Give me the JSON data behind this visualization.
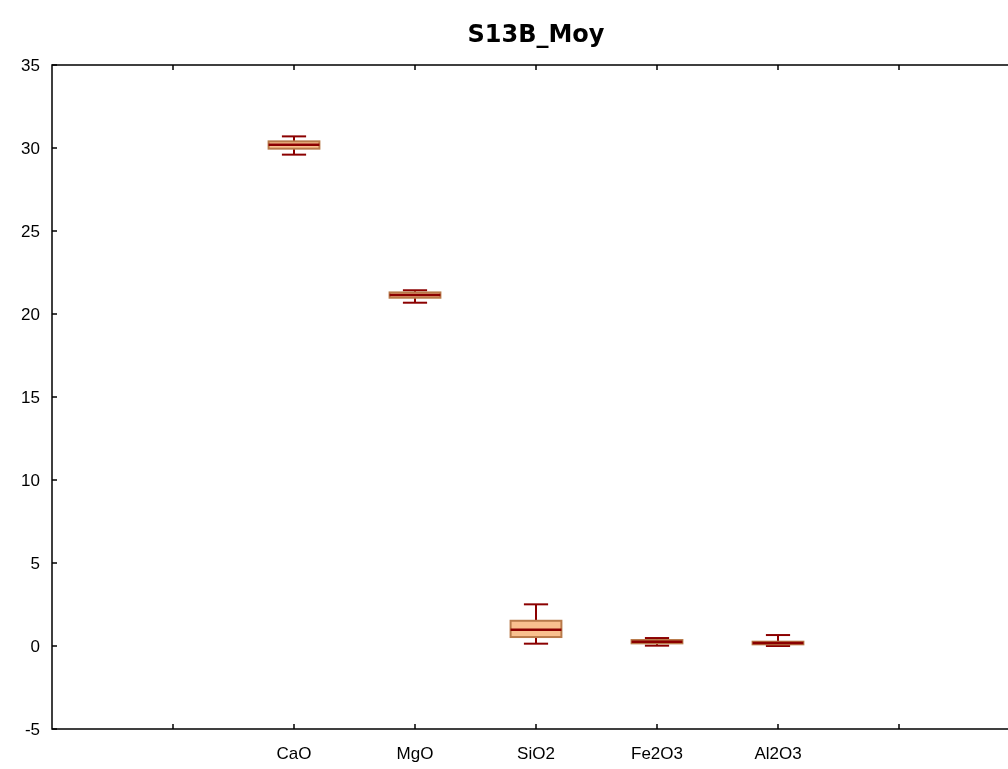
{
  "chart_data": {
    "type": "box",
    "title": "S13B_Moy",
    "categories": [
      null,
      "CaO",
      "MgO",
      "SiO2",
      "Fe2O3",
      "Al2O3",
      null
    ],
    "boxes": [
      null,
      {
        "low": 29.6,
        "q1": 29.96,
        "median": 30.2,
        "q3": 30.4,
        "high": 30.7
      },
      {
        "low": 20.68,
        "q1": 20.98,
        "median": 21.14,
        "q3": 21.3,
        "high": 21.43
      },
      {
        "low": 0.14,
        "q1": 0.54,
        "median": 0.98,
        "q3": 1.52,
        "high": 2.51
      },
      {
        "low": 0.02,
        "q1": 0.16,
        "median": 0.26,
        "q3": 0.36,
        "high": 0.48
      },
      {
        "low": 0,
        "q1": 0.1,
        "median": 0.18,
        "q3": 0.26,
        "high": 0.66
      },
      null
    ],
    "color": "#f9c08e",
    "ylim": [
      -5,
      35
    ],
    "yticks": [
      -5,
      0,
      5,
      10,
      15,
      20,
      25,
      30,
      35
    ],
    "grid": false
  }
}
